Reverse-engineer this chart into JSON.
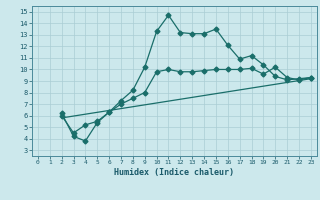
{
  "xlabel": "Humidex (Indice chaleur)",
  "bg_color": "#cce8ec",
  "line_color": "#1a6e6a",
  "grid_color": "#aacdd4",
  "xlim": [
    -0.5,
    23.5
  ],
  "ylim": [
    2.5,
    15.5
  ],
  "xticks": [
    0,
    1,
    2,
    3,
    4,
    5,
    6,
    7,
    8,
    9,
    10,
    11,
    12,
    13,
    14,
    15,
    16,
    17,
    18,
    19,
    20,
    21,
    22,
    23
  ],
  "yticks": [
    3,
    4,
    5,
    6,
    7,
    8,
    9,
    10,
    11,
    12,
    13,
    14,
    15
  ],
  "line1_x": [
    2,
    3,
    4,
    5,
    6,
    7,
    8,
    9,
    10,
    11,
    12,
    13,
    14,
    15,
    16,
    17,
    18,
    19,
    20,
    21,
    22,
    23
  ],
  "line1_y": [
    6.2,
    4.2,
    3.8,
    5.4,
    6.3,
    7.3,
    8.2,
    10.2,
    13.3,
    14.7,
    13.2,
    13.1,
    13.1,
    13.5,
    12.1,
    10.9,
    11.2,
    10.4,
    9.4,
    9.1,
    9.2,
    9.3
  ],
  "line2_x": [
    2,
    3,
    4,
    5,
    6,
    7,
    8,
    9,
    10,
    11,
    12,
    13,
    14,
    15,
    16,
    17,
    18,
    19,
    20,
    21,
    22,
    23
  ],
  "line2_y": [
    6.0,
    4.5,
    5.2,
    5.5,
    6.3,
    7.0,
    7.5,
    8.0,
    9.8,
    10.0,
    9.8,
    9.8,
    9.9,
    10.0,
    10.0,
    10.0,
    10.1,
    9.6,
    10.2,
    9.3,
    9.1,
    9.3
  ],
  "line3_x": [
    2,
    23
  ],
  "line3_y": [
    5.8,
    9.2
  ]
}
